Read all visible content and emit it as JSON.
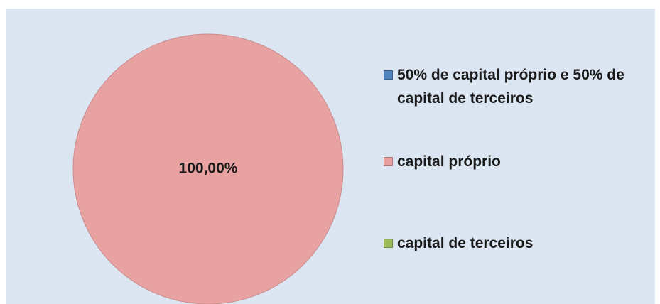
{
  "chart_data": {
    "type": "pie",
    "categories": [
      "50% de capital próprio e 50% de capital de terceiros",
      "capital próprio",
      "capital de terceiros"
    ],
    "values": [
      0,
      100,
      0
    ],
    "value_labels": [
      null,
      "100,00%",
      null
    ],
    "colors": [
      "#4f81bd",
      "#e8a2a2",
      "#9bbb59"
    ],
    "legend": "right"
  }
}
